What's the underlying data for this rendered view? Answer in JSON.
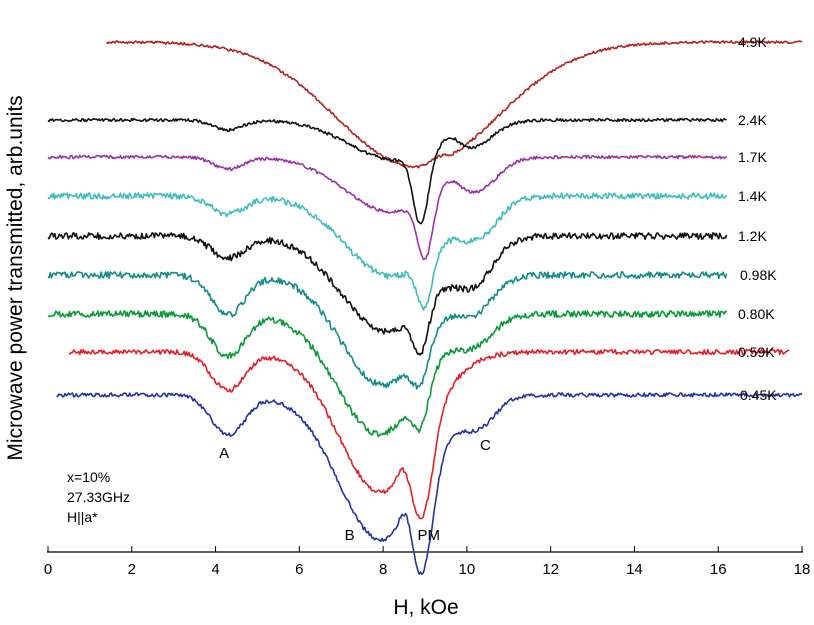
{
  "chart_data": {
    "type": "line",
    "xlabel": "H, kOe",
    "ylabel": "Microwave power transmitted, arb.units",
    "xlim": [
      0,
      18
    ],
    "x_ticks": [
      "0",
      "2",
      "4",
      "6",
      "8",
      "10",
      "12",
      "14",
      "16",
      "18"
    ],
    "grid": false,
    "info_lines": [
      "x=10%",
      "27.33GHz",
      "H||a*"
    ],
    "annotations": [
      {
        "label": "A",
        "x": 4.3
      },
      {
        "label": "B",
        "x": 7.2
      },
      {
        "label": "PM",
        "x": 8.9
      },
      {
        "label": "C",
        "x": 10.3
      }
    ],
    "series": [
      {
        "name": "4.9K",
        "color": "#b22222",
        "x_start": 1.4,
        "x_end": 18.0,
        "baseline": 0.0,
        "noise": 1.3,
        "dips": [
          {
            "x": 8.8,
            "depth": 125,
            "width": 1.9
          },
          {
            "x": 9.3,
            "depth": -6,
            "width": 0.2
          }
        ]
      },
      {
        "name": "2.4K",
        "color": "#111111",
        "x_start": 0.0,
        "x_end": 16.2,
        "baseline": 0.0,
        "noise": 1.5,
        "dips": [
          {
            "x": 4.3,
            "depth": 10,
            "width": 0.35
          },
          {
            "x": 8.3,
            "depth": 40,
            "width": 1.1
          },
          {
            "x": 8.9,
            "depth": 70,
            "width": 0.18
          },
          {
            "x": 9.6,
            "depth": -10,
            "width": 0.2
          },
          {
            "x": 10.2,
            "depth": 18,
            "width": 0.45
          }
        ]
      },
      {
        "name": "1.7K",
        "color": "#9b30a8",
        "x_start": 0.0,
        "x_end": 16.2,
        "baseline": 0.0,
        "noise": 1.5,
        "dips": [
          {
            "x": 4.3,
            "depth": 12,
            "width": 0.35
          },
          {
            "x": 8.2,
            "depth": 55,
            "width": 1.1
          },
          {
            "x": 9.0,
            "depth": 60,
            "width": 0.18
          },
          {
            "x": 9.6,
            "depth": -8,
            "width": 0.2
          },
          {
            "x": 10.3,
            "depth": 25,
            "width": 0.45
          }
        ]
      },
      {
        "name": "1.4K",
        "color": "#3fbdbd",
        "x_start": 0.0,
        "x_end": 16.2,
        "baseline": 0.0,
        "noise": 3.0,
        "dips": [
          {
            "x": 4.3,
            "depth": 18,
            "width": 0.4
          },
          {
            "x": 8.2,
            "depth": 80,
            "width": 1.1
          },
          {
            "x": 9.0,
            "depth": 50,
            "width": 0.18
          },
          {
            "x": 10.3,
            "depth": 30,
            "width": 0.45
          }
        ]
      },
      {
        "name": "1.2K",
        "color": "#111111",
        "x_start": 0.0,
        "x_end": 16.2,
        "baseline": 0.0,
        "noise": 3.2,
        "dips": [
          {
            "x": 4.3,
            "depth": 22,
            "width": 0.4
          },
          {
            "x": 8.1,
            "depth": 95,
            "width": 1.1
          },
          {
            "x": 8.9,
            "depth": 45,
            "width": 0.18
          },
          {
            "x": 10.2,
            "depth": 35,
            "width": 0.45
          }
        ]
      },
      {
        "name": "0.98K",
        "color": "#148c8c",
        "x_start": 0.0,
        "x_end": 16.2,
        "baseline": 0.0,
        "noise": 3.2,
        "dips": [
          {
            "x": 4.3,
            "depth": 40,
            "width": 0.4
          },
          {
            "x": 8.0,
            "depth": 110,
            "width": 1.0
          },
          {
            "x": 8.9,
            "depth": 35,
            "width": 0.2
          },
          {
            "x": 10.2,
            "depth": 30,
            "width": 0.45
          }
        ]
      },
      {
        "name": "0.80K",
        "color": "#0a9a3a",
        "x_start": 0.0,
        "x_end": 16.2,
        "baseline": 0.0,
        "noise": 3.2,
        "dips": [
          {
            "x": 4.3,
            "depth": 42,
            "width": 0.4
          },
          {
            "x": 7.9,
            "depth": 120,
            "width": 1.0
          },
          {
            "x": 8.9,
            "depth": 40,
            "width": 0.2
          },
          {
            "x": 10.2,
            "depth": 25,
            "width": 0.45
          }
        ]
      },
      {
        "name": "0.59K",
        "color": "#e3202a",
        "x_start": 0.5,
        "x_end": 17.7,
        "baseline": 0.0,
        "noise": 2.4,
        "dips": [
          {
            "x": 4.3,
            "depth": 38,
            "width": 0.4
          },
          {
            "x": 7.95,
            "depth": 140,
            "width": 1.0
          },
          {
            "x": 8.95,
            "depth": 80,
            "width": 0.25
          },
          {
            "x": 8.5,
            "depth": -18,
            "width": 0.15
          }
        ]
      },
      {
        "name": "0.45K",
        "color": "#24339e",
        "x_start": 0.2,
        "x_end": 18.0,
        "baseline": 0.0,
        "noise": 2.0,
        "dips": [
          {
            "x": 4.3,
            "depth": 40,
            "width": 0.4
          },
          {
            "x": 7.95,
            "depth": 145,
            "width": 1.0
          },
          {
            "x": 8.95,
            "depth": 90,
            "width": 0.25
          },
          {
            "x": 8.55,
            "depth": -25,
            "width": 0.15
          },
          {
            "x": 10.3,
            "depth": 25,
            "width": 0.4
          }
        ]
      }
    ]
  }
}
